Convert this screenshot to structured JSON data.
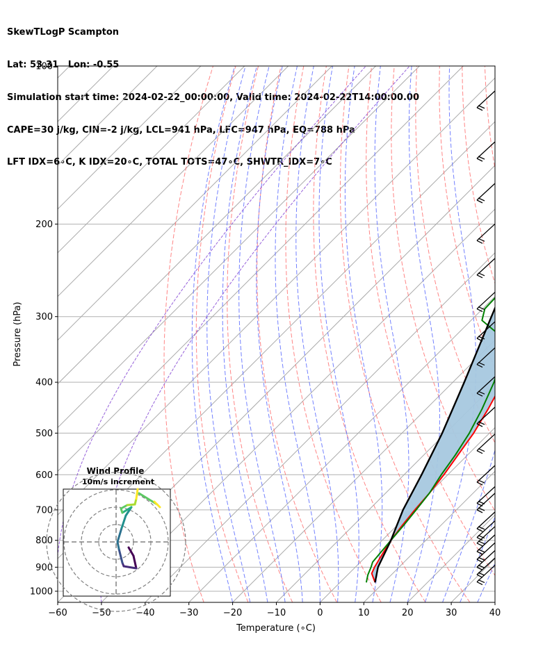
{
  "header": {
    "line1": "SkewTLogP Scampton",
    "line2": "Lat: 53.31   Lon: -0.55",
    "line3": "Simulation start time: 2024-02-22_00:00:00, Valid time: 2024-02-22T14:00:00.00",
    "line4": "CAPE=30 j/kg, CIN=-2 j/kg, LCL=941 hPa, LFC=947 hPa, EQ=788 hPa",
    "line5": "LFT IDX=6∘C, K IDX=20∘C, TOTAL TOTS=47∘C, SHWTR_IDX=7∘C"
  },
  "chart_data": {
    "type": "line",
    "diagram": "skew-T log-P",
    "xlabel": "Temperature (∘C)",
    "ylabel": "Pressure (hPa)",
    "xlim": [
      -60,
      40
    ],
    "ylim": [
      1050,
      100
    ],
    "x_ticks": [
      -60,
      -50,
      -40,
      -30,
      -20,
      -10,
      0,
      10,
      20,
      30,
      40
    ],
    "x_tick_labels": [
      "−60",
      "−50",
      "−40",
      "−30",
      "−20",
      "−10",
      "0",
      "10",
      "20",
      "30",
      "40"
    ],
    "y_ticks": [
      1000,
      900,
      800,
      700,
      600,
      500,
      400,
      300,
      200,
      100
    ],
    "y_tick_labels": [
      "1000",
      "900",
      "800",
      "700",
      "600",
      "500",
      "400",
      "300",
      "200",
      "100"
    ],
    "grid": true,
    "series": [
      {
        "role": "temperature",
        "color": "#ff0000",
        "points": [
          [
            962,
            8.0
          ],
          [
            925,
            5.2
          ],
          [
            900,
            4.4
          ],
          [
            850,
            3.2
          ],
          [
            800,
            2.0
          ],
          [
            750,
            1.2
          ],
          [
            700,
            0.5
          ],
          [
            650,
            0.0
          ],
          [
            600,
            -0.9
          ],
          [
            550,
            -2.2
          ],
          [
            500,
            -3.6
          ],
          [
            450,
            -5.8
          ],
          [
            400,
            -8.6
          ],
          [
            350,
            -12.3
          ],
          [
            330,
            -13.2
          ],
          [
            310,
            -12.2
          ],
          [
            300,
            -11.2
          ],
          [
            270,
            -8.3
          ],
          [
            250,
            -5.8
          ],
          [
            220,
            -2.6
          ],
          [
            200,
            -0.2
          ],
          [
            180,
            2.2
          ],
          [
            160,
            4.8
          ],
          [
            150,
            6.0
          ],
          [
            140,
            7.0
          ],
          [
            120,
            9.8
          ],
          [
            110,
            12.8
          ],
          [
            100,
            17.5
          ]
        ]
      },
      {
        "role": "dewpoint",
        "color": "#008000",
        "points": [
          [
            962,
            6.0
          ],
          [
            930,
            4.6
          ],
          [
            900,
            3.6
          ],
          [
            880,
            2.8
          ],
          [
            850,
            2.5
          ],
          [
            800,
            2.0
          ],
          [
            750,
            1.5
          ],
          [
            700,
            0.8
          ],
          [
            650,
            0.0
          ],
          [
            600,
            -1.5
          ],
          [
            550,
            -2.8
          ],
          [
            500,
            -4.6
          ],
          [
            450,
            -7.2
          ],
          [
            400,
            -10.6
          ],
          [
            360,
            -14.5
          ],
          [
            333,
            -16.0
          ],
          [
            320,
            -22.0
          ],
          [
            305,
            -27.5
          ],
          [
            290,
            -29.5
          ],
          [
            250,
            -30.0
          ],
          [
            220,
            -31.0
          ],
          [
            200,
            -30.5
          ],
          [
            180,
            -27.0
          ],
          [
            150,
            -21.5
          ],
          [
            120,
            -14.0
          ],
          [
            100,
            -7.5
          ]
        ]
      },
      {
        "role": "parcel profile",
        "color": "#000000",
        "points": [
          [
            962,
            8.0
          ],
          [
            900,
            5.2
          ],
          [
            800,
            2.0
          ],
          [
            700,
            -2.2
          ],
          [
            600,
            -6.0
          ],
          [
            500,
            -10.8
          ],
          [
            400,
            -17.4
          ],
          [
            300,
            -26.2
          ],
          [
            200,
            -38.5
          ],
          [
            150,
            -46.0
          ],
          [
            100,
            -56.5
          ]
        ]
      }
    ],
    "shading": {
      "between": "temperature and parcel profile",
      "color": "#a6c8df"
    },
    "wind_barbs_column": {
      "x_position": "right edge",
      "color": "#000000"
    },
    "hodograph": {
      "title": "Wind Profile",
      "subtitle": "10m/s increment",
      "rings": 4,
      "colormap": "viridis"
    },
    "background_lines": {
      "isotherms": "#aaaaaa",
      "dry_adiabats": "#ff6666",
      "moist_adiabats": "#5a6bff",
      "mixing_ratio": "#8a4fd6"
    }
  }
}
